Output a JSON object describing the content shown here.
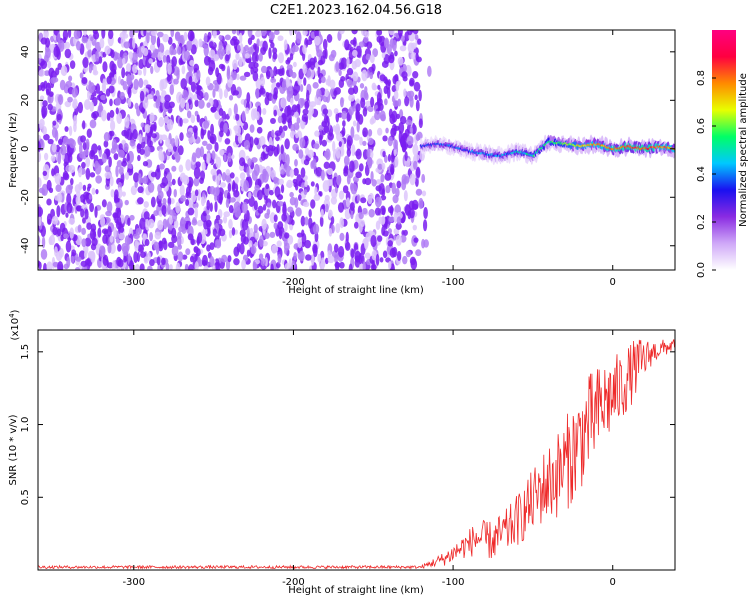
{
  "title": "C2E1.2023.162.04.56.G18",
  "colors": {
    "snr_line": "#ee2a2a",
    "axis": "#000000",
    "spec_noise": "#7a1df0"
  },
  "chart_data": [
    {
      "type": "heatmap",
      "name": "doppler-spectrogram",
      "xlabel": "Height of straight line (km)",
      "ylabel": "Frequency (Hz)",
      "xlim": [
        -360,
        39
      ],
      "ylim": [
        -50,
        49
      ],
      "x_ticks": [
        {
          "value": -300,
          "label": "-300"
        },
        {
          "value": -200,
          "label": "-200"
        },
        {
          "value": -100,
          "label": "-100"
        },
        {
          "value": 0,
          "label": "0"
        }
      ],
      "y_ticks": [
        {
          "value": -40,
          "label": "-40"
        },
        {
          "value": -20,
          "label": "-20"
        },
        {
          "value": 0,
          "label": "0"
        },
        {
          "value": 20,
          "label": "20"
        },
        {
          "value": 40,
          "label": "40"
        }
      ],
      "noise_region_x": [
        -360,
        -120
      ],
      "signal_trace": {
        "x": [
          -120,
          -110,
          -100,
          -90,
          -80,
          -70,
          -60,
          -50,
          -40,
          -30,
          -20,
          -10,
          0,
          10,
          20,
          30,
          39
        ],
        "freq_hz": [
          1,
          2,
          1,
          -1,
          -2,
          -3,
          -1,
          -3,
          3,
          2,
          1,
          2,
          0,
          1,
          0,
          1,
          0
        ],
        "amplitude": [
          0.3,
          0.35,
          0.35,
          0.35,
          0.4,
          0.4,
          0.45,
          0.5,
          0.55,
          0.6,
          0.7,
          0.75,
          0.8,
          0.85,
          0.85,
          0.8,
          0.75
        ]
      },
      "colorbar": {
        "label": "Normalized spectral amplitude",
        "range": [
          0.0,
          1.0
        ],
        "ticks": [
          {
            "value": 0.0,
            "label": "0.0"
          },
          {
            "value": 0.2,
            "label": "0.2"
          },
          {
            "value": 0.4,
            "label": "0.4"
          },
          {
            "value": 0.6,
            "label": "0.6"
          },
          {
            "value": 0.8,
            "label": "0.8"
          }
        ],
        "stops": [
          "#ffffff",
          "#cfa8f8",
          "#8a2be2",
          "#1a10f0",
          "#00c8ff",
          "#00ff66",
          "#e8ff00",
          "#ff8a00",
          "#ff0040",
          "#ff0080"
        ]
      }
    },
    {
      "type": "line",
      "name": "snr",
      "xlabel": "Height of straight line (km)",
      "ylabel": "SNR (10 * v/v)",
      "y_multiplier": "(x10",
      "y_multiplier_exp": "4",
      "xlim": [
        -360,
        39
      ],
      "ylim": [
        0,
        1.65
      ],
      "x_ticks": [
        {
          "value": -300,
          "label": "-300"
        },
        {
          "value": -200,
          "label": "-200"
        },
        {
          "value": -100,
          "label": "-100"
        },
        {
          "value": 0,
          "label": "0"
        }
      ],
      "y_ticks": [
        {
          "value": 0.5,
          "label": "0.5"
        },
        {
          "value": 1.0,
          "label": "1.0"
        },
        {
          "value": 1.5,
          "label": "1.5"
        }
      ],
      "series": [
        {
          "x": [
            -360,
            -300,
            -200,
            -120,
            -105,
            -95,
            -85,
            -75,
            -65,
            -55,
            -45,
            -35,
            -25,
            -15,
            -5,
            5,
            15,
            25,
            39
          ],
          "y": [
            0.02,
            0.02,
            0.02,
            0.02,
            0.08,
            0.15,
            0.22,
            0.2,
            0.28,
            0.4,
            0.55,
            0.65,
            0.8,
            1.0,
            1.15,
            1.25,
            1.4,
            1.5,
            1.55
          ],
          "noise": [
            0.01,
            0.01,
            0.01,
            0.01,
            0.05,
            0.08,
            0.12,
            0.14,
            0.16,
            0.2,
            0.25,
            0.3,
            0.35,
            0.35,
            0.3,
            0.25,
            0.2,
            0.08,
            0.04
          ]
        }
      ]
    }
  ]
}
